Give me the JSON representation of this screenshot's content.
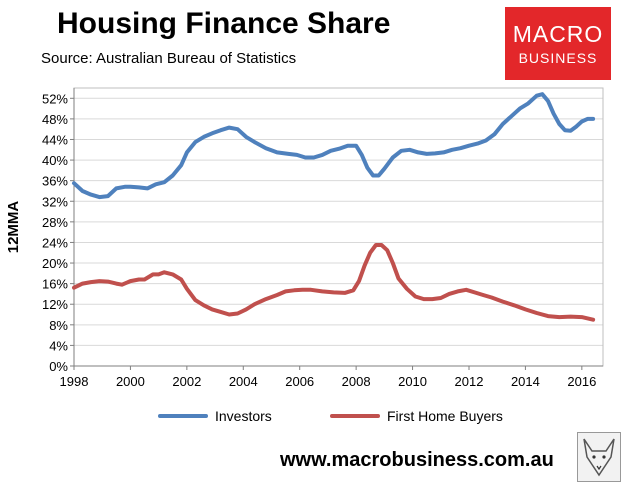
{
  "header": {
    "title": "Housing Finance Share",
    "source": "Source: Australian Bureau of Statistics"
  },
  "logo": {
    "line1": "MACRO",
    "line2": "BUSINESS",
    "bg_color": "#e3272a"
  },
  "footer": {
    "website": "www.macrobusiness.com.au",
    "badge_icon": "fox-icon"
  },
  "chart_data": {
    "type": "line",
    "ylabel": "12MMA",
    "xlim": [
      1998,
      2016.75
    ],
    "ylim": [
      0,
      54
    ],
    "yticks": [
      0,
      4,
      8,
      12,
      16,
      20,
      24,
      28,
      32,
      36,
      40,
      44,
      48,
      52
    ],
    "ytick_labels": [
      "0%",
      "4%",
      "8%",
      "12%",
      "16%",
      "20%",
      "24%",
      "28%",
      "32%",
      "36%",
      "40%",
      "44%",
      "48%",
      "52%"
    ],
    "xticks": [
      1998,
      2000,
      2002,
      2004,
      2006,
      2008,
      2010,
      2012,
      2014,
      2016
    ],
    "xtick_labels": [
      "1998",
      "2000",
      "2002",
      "2004",
      "2006",
      "2008",
      "2010",
      "2012",
      "2014",
      "2016"
    ],
    "grid": true,
    "legend_position": "bottom",
    "series": [
      {
        "name": "Investors",
        "color": "#4f81bd",
        "x": [
          1998.0,
          1998.3,
          1998.6,
          1998.9,
          1999.2,
          1999.5,
          1999.8,
          2000.0,
          2000.3,
          2000.6,
          2000.9,
          2001.2,
          2001.5,
          2001.8,
          2002.0,
          2002.3,
          2002.6,
          2002.9,
          2003.2,
          2003.5,
          2003.8,
          2004.1,
          2004.4,
          2004.8,
          2005.2,
          2005.6,
          2005.9,
          2006.2,
          2006.5,
          2006.8,
          2007.1,
          2007.4,
          2007.7,
          2008.0,
          2008.2,
          2008.4,
          2008.6,
          2008.8,
          2009.0,
          2009.3,
          2009.6,
          2009.9,
          2010.2,
          2010.5,
          2010.8,
          2011.1,
          2011.4,
          2011.7,
          2012.0,
          2012.3,
          2012.6,
          2012.9,
          2013.2,
          2013.5,
          2013.8,
          2014.1,
          2014.4,
          2014.6,
          2014.8,
          2015.0,
          2015.2,
          2015.4,
          2015.6,
          2015.8,
          2016.0,
          2016.2,
          2016.4
        ],
        "values": [
          35.5,
          34.0,
          33.3,
          32.8,
          33.0,
          34.5,
          34.8,
          34.8,
          34.7,
          34.5,
          35.3,
          35.7,
          37.0,
          39.0,
          41.5,
          43.5,
          44.5,
          45.2,
          45.8,
          46.3,
          46.0,
          44.5,
          43.5,
          42.3,
          41.5,
          41.2,
          41.0,
          40.5,
          40.5,
          41.0,
          41.8,
          42.2,
          42.8,
          42.8,
          41.0,
          38.5,
          37.0,
          37.0,
          38.3,
          40.5,
          41.8,
          42.0,
          41.5,
          41.2,
          41.3,
          41.5,
          42.0,
          42.3,
          42.8,
          43.2,
          43.8,
          45.0,
          47.0,
          48.5,
          50.0,
          51.0,
          52.5,
          52.8,
          51.5,
          49.0,
          47.0,
          45.8,
          45.7,
          46.5,
          47.5,
          48.0,
          48.0
        ]
      },
      {
        "name": "First Home Buyers",
        "color": "#c0504d",
        "x": [
          1998.0,
          1998.3,
          1998.6,
          1998.9,
          1999.2,
          1999.5,
          1999.7,
          2000.0,
          2000.3,
          2000.5,
          2000.8,
          2001.0,
          2001.2,
          2001.5,
          2001.8,
          2002.0,
          2002.3,
          2002.6,
          2002.9,
          2003.2,
          2003.5,
          2003.8,
          2004.1,
          2004.4,
          2004.8,
          2005.2,
          2005.5,
          2005.8,
          2006.1,
          2006.4,
          2006.8,
          2007.2,
          2007.6,
          2007.9,
          2008.1,
          2008.3,
          2008.5,
          2008.7,
          2008.9,
          2009.1,
          2009.3,
          2009.5,
          2009.8,
          2010.1,
          2010.4,
          2010.7,
          2011.0,
          2011.3,
          2011.6,
          2011.9,
          2012.2,
          2012.5,
          2012.8,
          2013.2,
          2013.6,
          2014.0,
          2014.4,
          2014.8,
          2015.2,
          2015.6,
          2016.0,
          2016.4
        ],
        "values": [
          15.2,
          16.0,
          16.3,
          16.5,
          16.4,
          16.0,
          15.8,
          16.5,
          16.8,
          16.8,
          17.8,
          17.8,
          18.2,
          17.8,
          16.8,
          15.0,
          12.8,
          11.8,
          11.0,
          10.5,
          10.0,
          10.2,
          11.0,
          12.0,
          13.0,
          13.8,
          14.5,
          14.7,
          14.8,
          14.8,
          14.5,
          14.3,
          14.2,
          14.7,
          16.5,
          19.5,
          22.0,
          23.5,
          23.5,
          22.5,
          20.0,
          17.0,
          15.0,
          13.5,
          13.0,
          13.0,
          13.2,
          14.0,
          14.5,
          14.8,
          14.3,
          13.8,
          13.3,
          12.5,
          11.8,
          11.0,
          10.3,
          9.7,
          9.5,
          9.6,
          9.5,
          9.0
        ]
      }
    ]
  }
}
